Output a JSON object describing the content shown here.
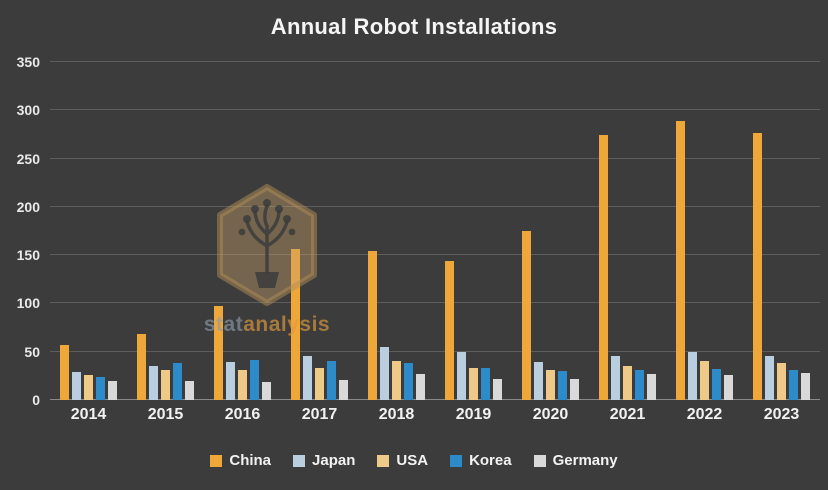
{
  "title": "Annual Robot Installations",
  "watermark": {
    "text_left": "stat",
    "text_right": "analysis"
  },
  "colors": {
    "background": "#3c3c3c",
    "grid": "#5d5d5d",
    "text": "#f2f2f2"
  },
  "chart_data": {
    "type": "bar",
    "title": "Annual Robot Installations",
    "categories": [
      "2014",
      "2015",
      "2016",
      "2017",
      "2018",
      "2019",
      "2020",
      "2021",
      "2022",
      "2023"
    ],
    "series": [
      {
        "name": "China",
        "color": "#F0A73A",
        "values": [
          57,
          68,
          97,
          156,
          154,
          144,
          175,
          274,
          289,
          276
        ]
      },
      {
        "name": "Japan",
        "color": "#B9CFDF",
        "values": [
          29,
          35,
          39,
          46,
          55,
          50,
          39,
          46,
          50,
          46
        ]
      },
      {
        "name": "USA",
        "color": "#EFC987",
        "values": [
          26,
          31,
          31,
          33,
          40,
          33,
          31,
          35,
          40,
          38
        ]
      },
      {
        "name": "Korea",
        "color": "#2E8BC9",
        "values": [
          24,
          38,
          41,
          40,
          38,
          33,
          30,
          31,
          32,
          31
        ]
      },
      {
        "name": "Germany",
        "color": "#D9D9D9",
        "values": [
          20,
          20,
          19,
          21,
          27,
          22,
          22,
          27,
          26,
          28
        ]
      }
    ],
    "xlabel": "",
    "ylabel": "",
    "ylim": [
      0,
      350
    ],
    "ytick_step": 50,
    "grid": true,
    "legend_position": "bottom"
  }
}
